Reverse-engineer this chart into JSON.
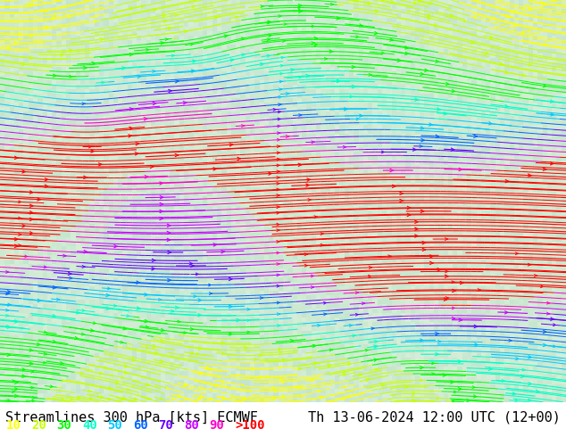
{
  "title_left": "Streamlines 300 hPa [kts] ECMWF",
  "title_right": "Th 13-06-2024 12:00 UTC (12+00)",
  "legend_values": [
    "10",
    "20",
    "30",
    "40",
    "50",
    "60",
    "70",
    "80",
    "90",
    ">100"
  ],
  "legend_colors": [
    "#ffff00",
    "#c8ff00",
    "#00ff00",
    "#00ffc8",
    "#00c8ff",
    "#0064ff",
    "#6400ff",
    "#c800ff",
    "#ff00c8",
    "#ff0000"
  ],
  "bg_color": "#d4ecd4",
  "map_bg": "#f5f0dc",
  "title_color": "#000000",
  "title_fontsize": 11,
  "legend_fontsize": 10,
  "fig_width": 6.34,
  "fig_height": 4.9,
  "dpi": 100,
  "speed_levels": [
    10,
    20,
    30,
    40,
    50,
    60,
    70,
    80,
    90,
    100
  ],
  "streamline_colors": [
    "#ffff00",
    "#c8ff00",
    "#00ff00",
    "#00ffc8",
    "#00c8ff",
    "#0064ff",
    "#6400ff",
    "#c800ff",
    "#ff00c8",
    "#ff0000"
  ]
}
